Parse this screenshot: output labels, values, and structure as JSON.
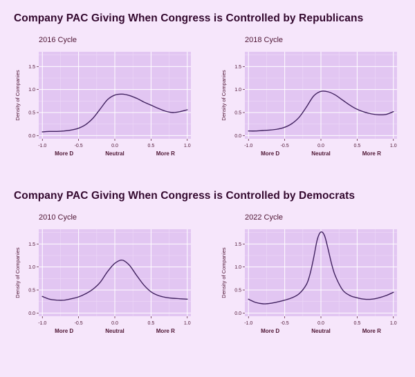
{
  "page": {
    "title_republicans": "Company PAC Giving When Congress is Controlled by Republicans",
    "title_democrats": "Company PAC Giving When Congress is Controlled by Democrats"
  },
  "colors": {
    "page_bg": "#f6e6fb",
    "panel_bg": "#e2c6f2",
    "grid_major": "#ffffff",
    "grid_minor": "#eed9f8",
    "line": "#40215f",
    "title_text": "#33082e",
    "chart_text": "#4d1432"
  },
  "chart_data": [
    {
      "type": "line",
      "title": "2016 Cycle",
      "group": "Republicans",
      "ylabel": "Density of Companies",
      "xlim": [
        -1.05,
        1.05
      ],
      "ylim": [
        -0.07,
        1.82
      ],
      "xticks": [
        -1.0,
        -0.5,
        0.0,
        0.5,
        1.0
      ],
      "xtick_labels": [
        "-1.0",
        "-0.5",
        "0.0",
        "0.5",
        "1.0"
      ],
      "yticks": [
        0.0,
        0.5,
        1.0,
        1.5
      ],
      "ytick_labels": [
        "0.0",
        "0.5",
        "1.0",
        "1.5"
      ],
      "annotations": [
        {
          "x": -0.7,
          "label": "More D"
        },
        {
          "x": 0.0,
          "label": "Neutral"
        },
        {
          "x": 0.7,
          "label": "More R"
        }
      ],
      "x": [
        -1.0,
        -0.9,
        -0.8,
        -0.7,
        -0.6,
        -0.5,
        -0.4,
        -0.3,
        -0.2,
        -0.1,
        0.0,
        0.1,
        0.2,
        0.3,
        0.4,
        0.5,
        0.6,
        0.7,
        0.8,
        0.9,
        1.0
      ],
      "y": [
        0.08,
        0.09,
        0.09,
        0.1,
        0.12,
        0.16,
        0.24,
        0.38,
        0.58,
        0.78,
        0.88,
        0.9,
        0.87,
        0.81,
        0.73,
        0.66,
        0.59,
        0.53,
        0.5,
        0.52,
        0.56
      ]
    },
    {
      "type": "line",
      "title": "2018 Cycle",
      "group": "Republicans",
      "ylabel": "Density of Companies",
      "xlim": [
        -1.05,
        1.05
      ],
      "ylim": [
        -0.07,
        1.82
      ],
      "xticks": [
        -1.0,
        -0.5,
        0.0,
        0.5,
        1.0
      ],
      "xtick_labels": [
        "-1.0",
        "-0.5",
        "0.0",
        "0.5",
        "1.0"
      ],
      "yticks": [
        0.0,
        0.5,
        1.0,
        1.5
      ],
      "ytick_labels": [
        "0.0",
        "0.5",
        "1.0",
        "1.5"
      ],
      "annotations": [
        {
          "x": -0.7,
          "label": "More D"
        },
        {
          "x": 0.0,
          "label": "Neutral"
        },
        {
          "x": 0.7,
          "label": "More R"
        }
      ],
      "x": [
        -1.0,
        -0.9,
        -0.8,
        -0.7,
        -0.6,
        -0.5,
        -0.4,
        -0.3,
        -0.2,
        -0.1,
        0.0,
        0.1,
        0.2,
        0.3,
        0.4,
        0.5,
        0.6,
        0.7,
        0.8,
        0.9,
        1.0
      ],
      "y": [
        0.1,
        0.1,
        0.11,
        0.12,
        0.14,
        0.18,
        0.26,
        0.4,
        0.62,
        0.86,
        0.96,
        0.95,
        0.88,
        0.77,
        0.66,
        0.57,
        0.51,
        0.47,
        0.45,
        0.46,
        0.52
      ]
    },
    {
      "type": "line",
      "title": "2010 Cycle",
      "group": "Democrats",
      "ylabel": "Density of Companies",
      "xlim": [
        -1.05,
        1.05
      ],
      "ylim": [
        -0.07,
        1.82
      ],
      "xticks": [
        -1.0,
        -0.5,
        0.0,
        0.5,
        1.0
      ],
      "xtick_labels": [
        "-1.0",
        "-0.5",
        "0.0",
        "0.5",
        "1.0"
      ],
      "yticks": [
        0.0,
        0.5,
        1.0,
        1.5
      ],
      "ytick_labels": [
        "0.0",
        "0.5",
        "1.0",
        "1.5"
      ],
      "annotations": [
        {
          "x": -0.7,
          "label": "More D"
        },
        {
          "x": 0.0,
          "label": "Neutral"
        },
        {
          "x": 0.7,
          "label": "More R"
        }
      ],
      "x": [
        -1.0,
        -0.9,
        -0.8,
        -0.7,
        -0.6,
        -0.5,
        -0.4,
        -0.3,
        -0.2,
        -0.1,
        0.0,
        0.1,
        0.2,
        0.3,
        0.4,
        0.5,
        0.6,
        0.7,
        0.8,
        0.9,
        1.0
      ],
      "y": [
        0.36,
        0.3,
        0.28,
        0.28,
        0.31,
        0.35,
        0.42,
        0.52,
        0.67,
        0.9,
        1.08,
        1.15,
        1.04,
        0.82,
        0.61,
        0.46,
        0.38,
        0.34,
        0.32,
        0.31,
        0.3
      ]
    },
    {
      "type": "line",
      "title": "2022 Cycle",
      "group": "Democrats",
      "ylabel": "Density of Companies",
      "xlim": [
        -1.05,
        1.05
      ],
      "ylim": [
        -0.07,
        1.82
      ],
      "xticks": [
        -1.0,
        -0.5,
        0.0,
        0.5,
        1.0
      ],
      "xtick_labels": [
        "-1.0",
        "-0.5",
        "0.0",
        "0.5",
        "1.0"
      ],
      "yticks": [
        0.0,
        0.5,
        1.0,
        1.5
      ],
      "ytick_labels": [
        "0.0",
        "0.5",
        "1.0",
        "1.5"
      ],
      "annotations": [
        {
          "x": -0.7,
          "label": "More D"
        },
        {
          "x": 0.0,
          "label": "Neutral"
        },
        {
          "x": 0.7,
          "label": "More R"
        }
      ],
      "x": [
        -1.0,
        -0.9,
        -0.8,
        -0.7,
        -0.6,
        -0.5,
        -0.4,
        -0.3,
        -0.2,
        -0.15,
        -0.1,
        -0.05,
        0.0,
        0.05,
        0.1,
        0.15,
        0.2,
        0.3,
        0.4,
        0.5,
        0.6,
        0.7,
        0.8,
        0.9,
        1.0
      ],
      "y": [
        0.3,
        0.23,
        0.2,
        0.21,
        0.24,
        0.28,
        0.33,
        0.42,
        0.62,
        0.85,
        1.2,
        1.6,
        1.76,
        1.68,
        1.38,
        1.05,
        0.8,
        0.5,
        0.38,
        0.33,
        0.3,
        0.3,
        0.33,
        0.38,
        0.45
      ]
    }
  ]
}
